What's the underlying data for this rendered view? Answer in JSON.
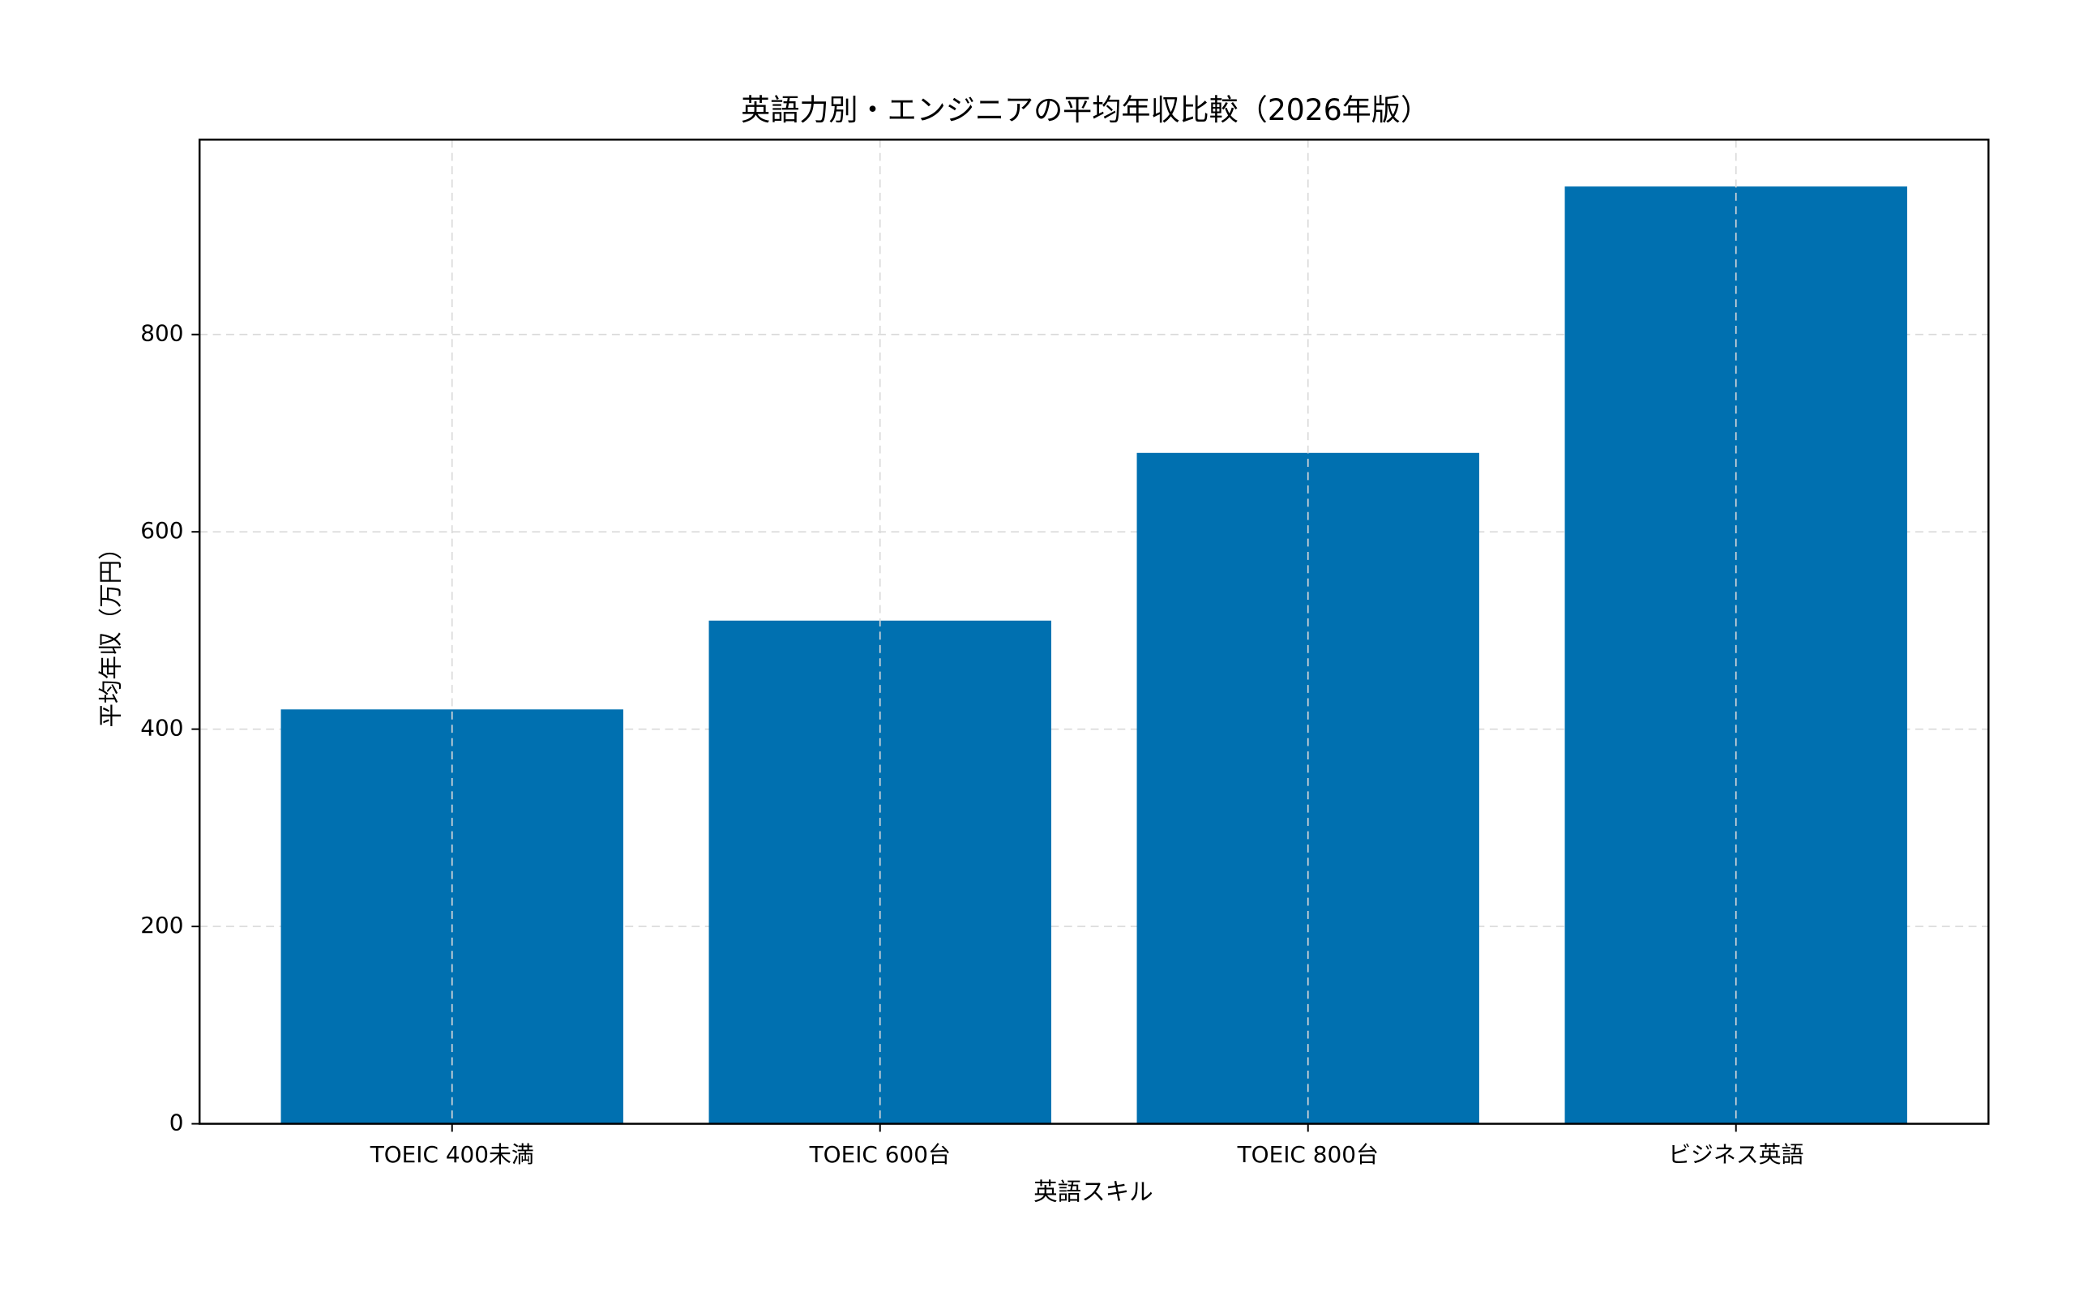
{
  "chart_data": {
    "type": "bar",
    "title": "英語力別・エンジニアの平均年収比較（2026年版）",
    "x_label": "英語スキル",
    "y_label": "平均年収（万円）",
    "categories": [
      "TOEIC 400未満",
      "TOEIC 600台",
      "TOEIC 800台",
      "ビジネス英語"
    ],
    "values": [
      420,
      510,
      680,
      950
    ],
    "color": "#0070b0",
    "ylim": [
      0,
      997.5
    ],
    "yticks": [
      0,
      200,
      400,
      600,
      800
    ],
    "grid": true
  }
}
